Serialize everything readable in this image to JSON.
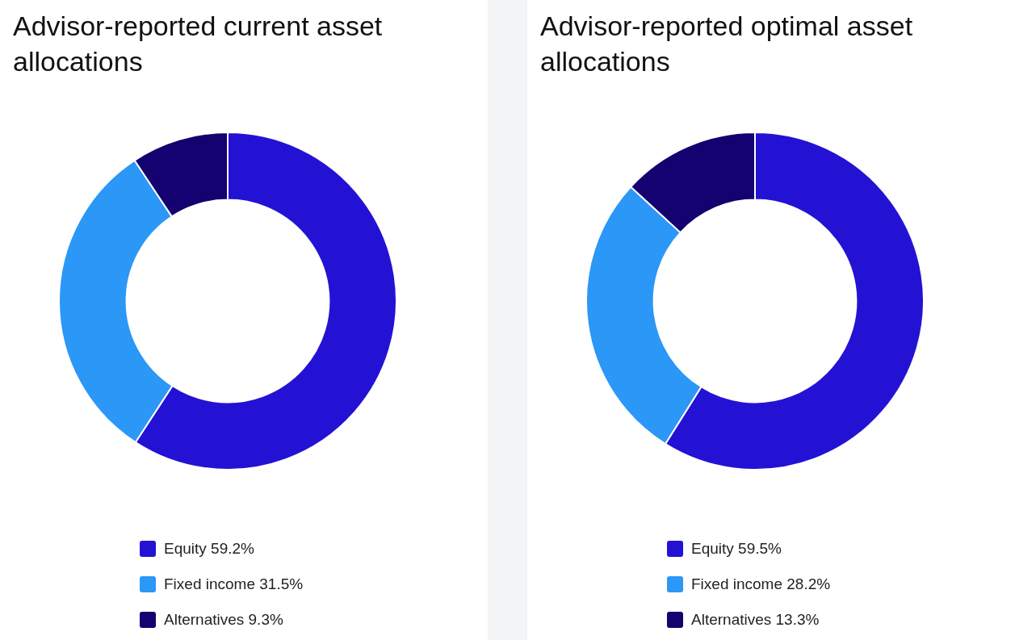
{
  "chart_data": [
    {
      "type": "donut",
      "title": "Advisor-reported current asset allocations",
      "categories": [
        "Equity",
        "Fixed income",
        "Alternatives"
      ],
      "values": [
        59.2,
        31.5,
        9.3
      ],
      "value_labels": [
        "59.2%",
        "31.5%",
        "9.3%"
      ],
      "colors": [
        "#2412d4",
        "#2b97f7",
        "#13026f"
      ],
      "legend": "bottom"
    },
    {
      "type": "donut",
      "title": "Advisor-reported optimal asset allocations",
      "categories": [
        "Equity",
        "Fixed income",
        "Alternatives"
      ],
      "values": [
        59.5,
        28.2,
        13.3
      ],
      "value_labels": [
        "59.5%",
        "28.2%",
        "13.3%"
      ],
      "colors": [
        "#2412d4",
        "#2b97f7",
        "#13026f"
      ],
      "legend": "bottom"
    }
  ]
}
